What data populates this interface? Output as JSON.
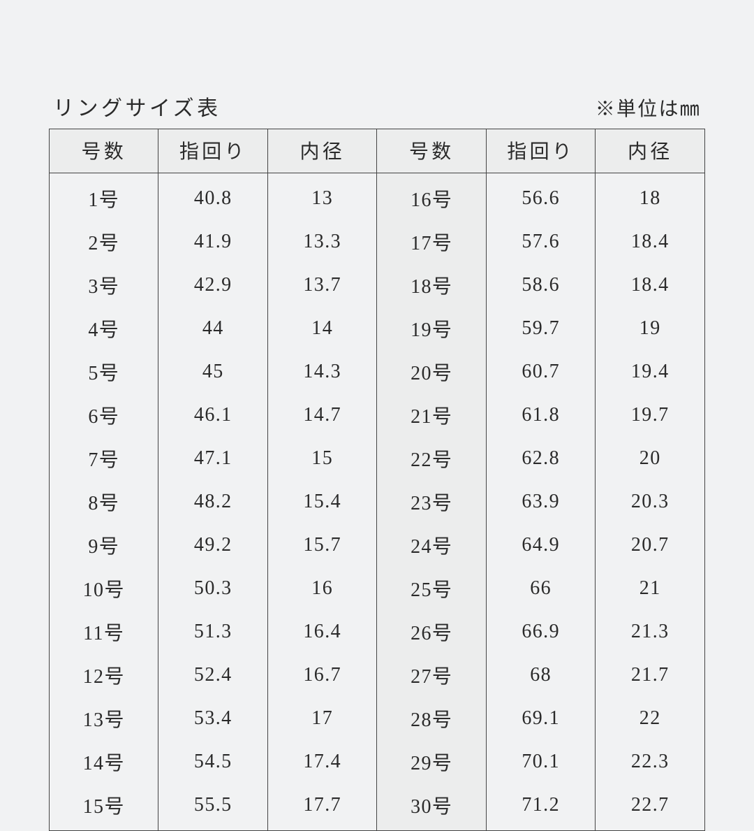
{
  "title": "リングサイズ表",
  "units_note": "※単位は㎜",
  "columns": [
    "号数",
    "指回り",
    "内径",
    "号数",
    "指回り",
    "内径"
  ],
  "colors": {
    "page_bg": "#f1f2f3",
    "header_bg": "#eceded",
    "shade_bg": "#eceded",
    "border": "#444444",
    "text": "#2a2a2a"
  },
  "typography": {
    "family": "serif / Mincho",
    "title_size_pt": 22,
    "header_size_pt": 21,
    "cell_size_pt": 21
  },
  "table_type": "table",
  "rows": [
    [
      "1号",
      "40.8",
      "13",
      "16号",
      "56.6",
      "18"
    ],
    [
      "2号",
      "41.9",
      "13.3",
      "17号",
      "57.6",
      "18.4"
    ],
    [
      "3号",
      "42.9",
      "13.7",
      "18号",
      "58.6",
      "18.4"
    ],
    [
      "4号",
      "44",
      "14",
      "19号",
      "59.7",
      "19"
    ],
    [
      "5号",
      "45",
      "14.3",
      "20号",
      "60.7",
      "19.4"
    ],
    [
      "6号",
      "46.1",
      "14.7",
      "21号",
      "61.8",
      "19.7"
    ],
    [
      "7号",
      "47.1",
      "15",
      "22号",
      "62.8",
      "20"
    ],
    [
      "8号",
      "48.2",
      "15.4",
      "23号",
      "63.9",
      "20.3"
    ],
    [
      "9号",
      "49.2",
      "15.7",
      "24号",
      "64.9",
      "20.7"
    ],
    [
      "10号",
      "50.3",
      "16",
      "25号",
      "66",
      "21"
    ],
    [
      "11号",
      "51.3",
      "16.4",
      "26号",
      "66.9",
      "21.3"
    ],
    [
      "12号",
      "52.4",
      "16.7",
      "27号",
      "68",
      "21.7"
    ],
    [
      "13号",
      "53.4",
      "17",
      "28号",
      "69.1",
      "22"
    ],
    [
      "14号",
      "54.5",
      "17.4",
      "29号",
      "70.1",
      "22.3"
    ],
    [
      "15号",
      "55.5",
      "17.7",
      "30号",
      "71.2",
      "22.7"
    ]
  ]
}
